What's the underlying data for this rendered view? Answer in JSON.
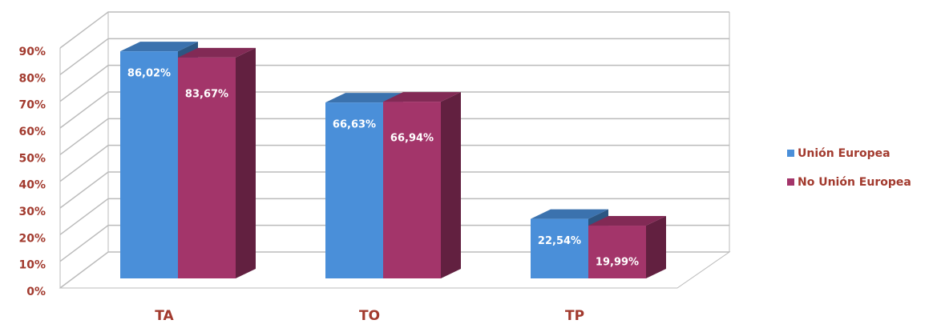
{
  "chart_data": {
    "type": "bar3d",
    "categories": [
      "TA",
      "TO",
      "TP"
    ],
    "series": [
      {
        "name": "Unión Europea",
        "color": "#4a8fd9",
        "values": [
          86.02,
          66.63,
          22.54
        ],
        "value_labels": [
          "86,02%",
          "66,63%",
          "22,54%"
        ]
      },
      {
        "name": "No Unión Europea",
        "color": "#a3356a",
        "values": [
          83.67,
          66.94,
          19.99
        ],
        "value_labels": [
          "83,67%",
          "66,94%",
          "19,99%"
        ]
      }
    ],
    "ylim": [
      0,
      90
    ],
    "yticks": [
      {
        "value": 0,
        "label": "0%"
      },
      {
        "value": 10,
        "label": "10%"
      },
      {
        "value": 20,
        "label": "20%"
      },
      {
        "value": 30,
        "label": "30%"
      },
      {
        "value": 40,
        "label": "40%"
      },
      {
        "value": 50,
        "label": "50%"
      },
      {
        "value": 60,
        "label": "60%"
      },
      {
        "value": 70,
        "label": "70%"
      },
      {
        "value": 80,
        "label": "80%"
      },
      {
        "value": 90,
        "label": "90%"
      }
    ],
    "grid": true,
    "legend": "right"
  }
}
